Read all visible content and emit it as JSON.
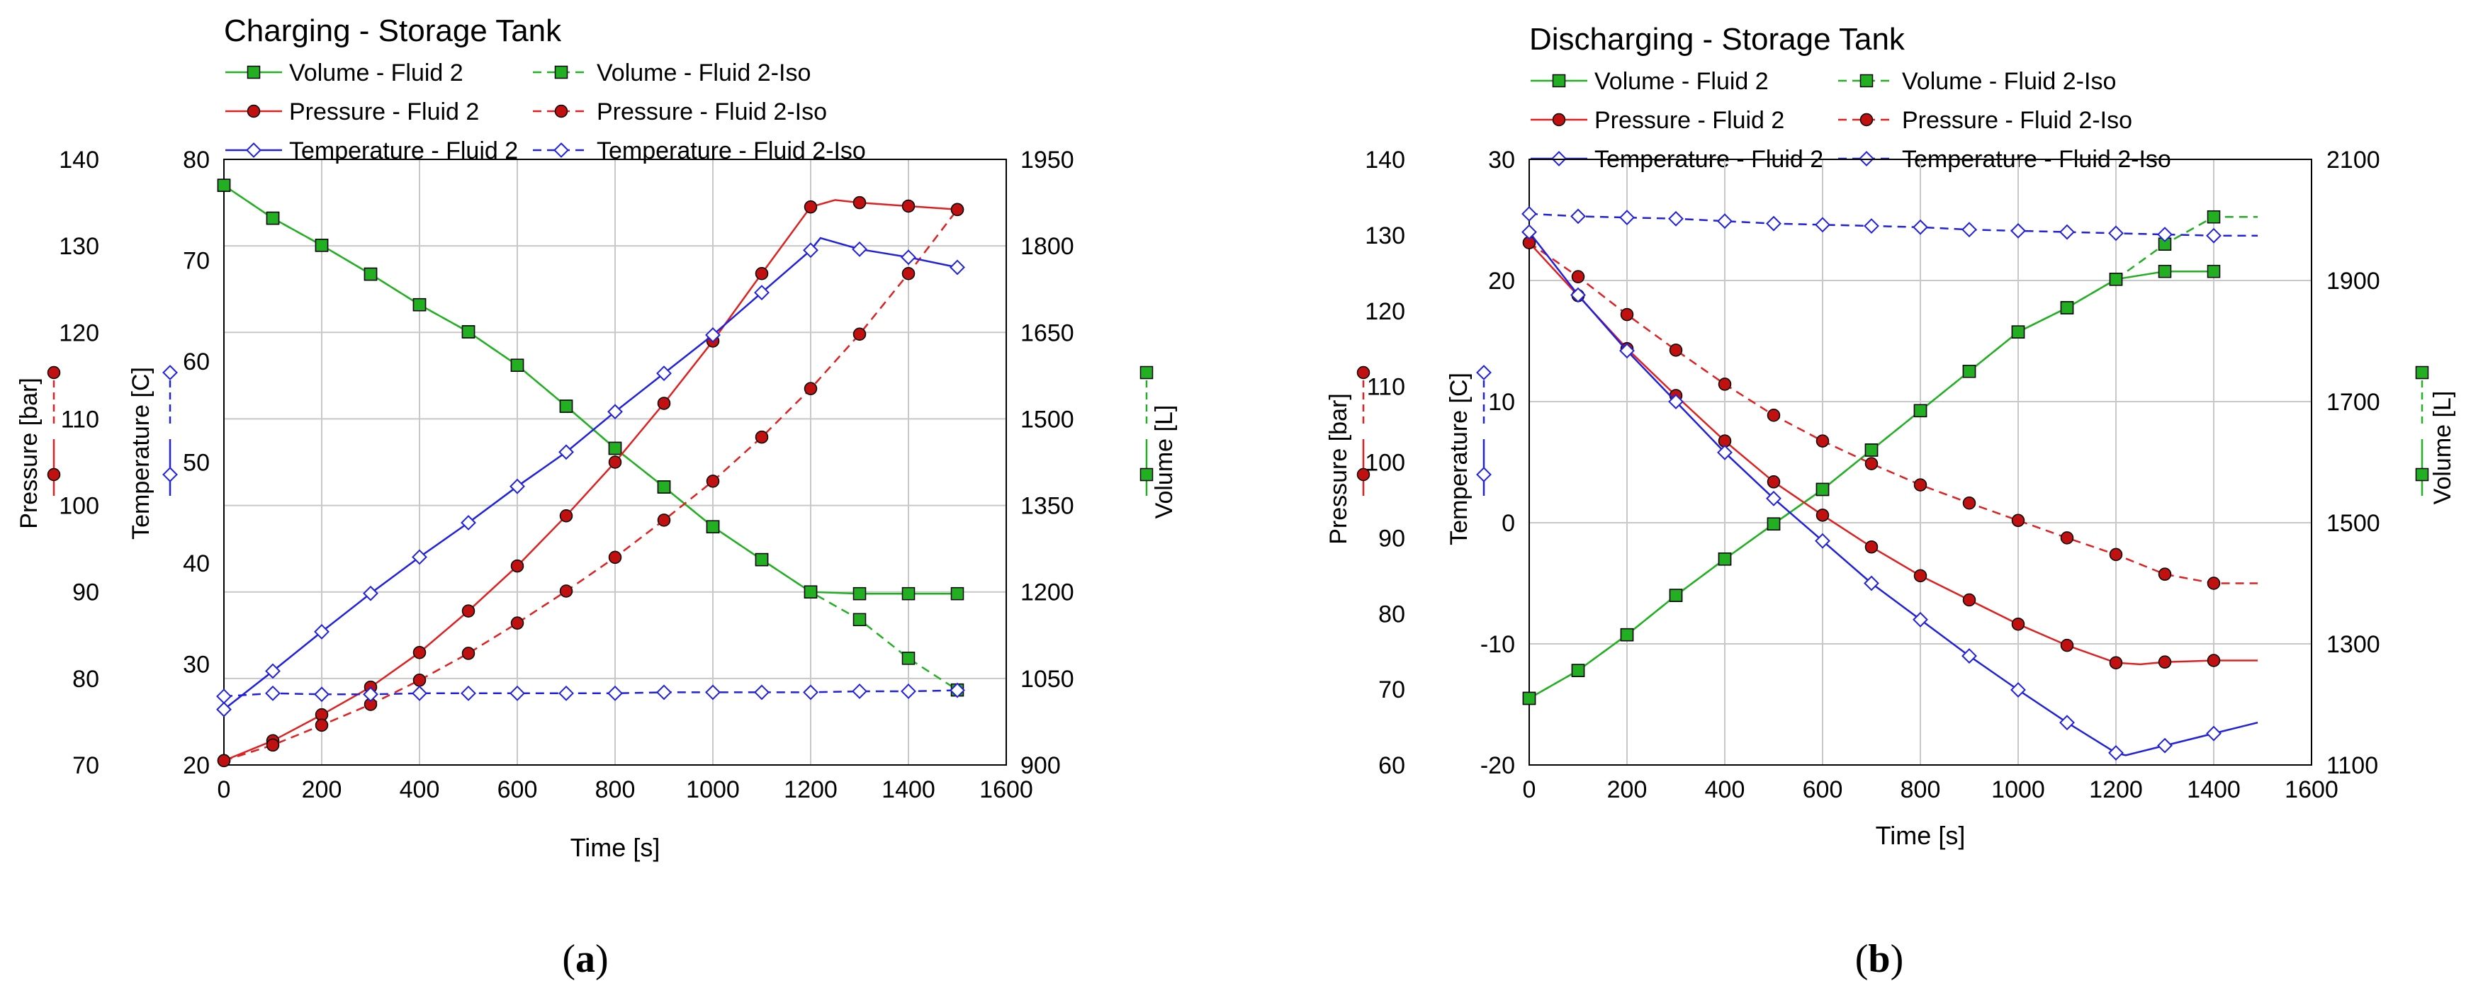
{
  "colors": {
    "green": "#22b022",
    "red": "#e02020",
    "blue": "#2020e0",
    "grid": "#c8c8c8"
  },
  "chart_data": [
    {
      "type": "line",
      "title": "Charging - Storage Tank",
      "panel_label_open": "(",
      "panel_label_letter": "a",
      "panel_label_close": ")",
      "xlabel": "Time [s]",
      "xlim": [
        0,
        1600
      ],
      "xticks": [
        0,
        200,
        400,
        600,
        800,
        1000,
        1200,
        1400,
        1600
      ],
      "grid": true,
      "axes": {
        "pressure": {
          "label": "Pressure [bar]",
          "lim": [
            70,
            140
          ],
          "ticks": [
            70,
            80,
            90,
            100,
            110,
            120,
            130,
            140
          ]
        },
        "temperature": {
          "label": "Temperature [C]",
          "lim": [
            20,
            80
          ],
          "ticks": [
            20,
            30,
            40,
            50,
            60,
            70,
            80
          ]
        },
        "volume": {
          "label": "Volume [L]",
          "lim": [
            900,
            1950
          ],
          "ticks": [
            900,
            1050,
            1200,
            1350,
            1500,
            1650,
            1800,
            1950
          ]
        }
      },
      "legend": [
        [
          "Volume - Fluid 2",
          "Volume - Fluid 2-Iso"
        ],
        [
          "Pressure - Fluid 2",
          "Pressure - Fluid 2-Iso"
        ],
        [
          "Temperature - Fluid 2",
          "Temperature - Fluid 2-Iso"
        ]
      ],
      "series": [
        {
          "name": "Volume - Fluid 2",
          "axis": "volume",
          "color": "green",
          "dash": false,
          "marker": "square",
          "x": [
            0,
            100,
            200,
            300,
            400,
            500,
            600,
            700,
            800,
            900,
            1000,
            1100,
            1200,
            1300,
            1400,
            1500
          ],
          "y": [
            1905,
            1848,
            1801,
            1751,
            1698,
            1651,
            1593,
            1522,
            1449,
            1382,
            1313,
            1256,
            1200,
            1197,
            1197,
            1197
          ]
        },
        {
          "name": "Volume - Fluid 2-Iso",
          "axis": "volume",
          "color": "green",
          "dash": true,
          "marker": "square",
          "x": [
            0,
            100,
            200,
            300,
            400,
            500,
            600,
            700,
            800,
            900,
            1000,
            1100,
            1200,
            1300,
            1400,
            1500
          ],
          "y": [
            1905,
            1848,
            1801,
            1751,
            1698,
            1651,
            1593,
            1522,
            1449,
            1382,
            1313,
            1256,
            1200,
            1152,
            1085,
            1030
          ]
        },
        {
          "name": "Pressure - Fluid 2",
          "axis": "pressure",
          "color": "red",
          "dash": false,
          "marker": "circle",
          "x": [
            0,
            100,
            200,
            300,
            400,
            500,
            600,
            700,
            800,
            900,
            1000,
            1100,
            1200,
            1250,
            1300,
            1400,
            1500
          ],
          "y": [
            70.5,
            72.8,
            75.8,
            79.0,
            83.0,
            87.8,
            93.0,
            98.8,
            105.0,
            111.8,
            119.0,
            126.8,
            134.5,
            135.3,
            135.0,
            134.6,
            134.2
          ]
        },
        {
          "name": "Pressure - Fluid 2-Iso",
          "axis": "pressure",
          "color": "red",
          "dash": true,
          "marker": "circle",
          "x": [
            0,
            100,
            200,
            300,
            400,
            500,
            600,
            700,
            800,
            900,
            1000,
            1100,
            1200,
            1300,
            1400,
            1500
          ],
          "y": [
            70.5,
            72.3,
            74.6,
            77.0,
            79.8,
            82.9,
            86.4,
            90.1,
            94.0,
            98.3,
            102.8,
            107.9,
            113.5,
            119.8,
            126.8,
            134.2
          ]
        },
        {
          "name": "Temperature - Fluid 2",
          "axis": "temperature",
          "color": "blue",
          "dash": false,
          "marker": "diamond",
          "x": [
            0,
            100,
            200,
            300,
            400,
            500,
            600,
            700,
            800,
            900,
            1000,
            1100,
            1200,
            1220,
            1300,
            1400,
            1500
          ],
          "y": [
            25.5,
            29.3,
            33.2,
            37.0,
            40.6,
            44.0,
            47.6,
            51.0,
            55.0,
            58.8,
            62.6,
            66.8,
            71.0,
            72.2,
            71.1,
            70.3,
            69.3
          ]
        },
        {
          "name": "Temperature - Fluid 2-Iso",
          "axis": "temperature",
          "color": "blue",
          "dash": true,
          "marker": "diamond",
          "x": [
            0,
            100,
            200,
            300,
            400,
            500,
            600,
            700,
            800,
            900,
            1000,
            1100,
            1200,
            1300,
            1400,
            1500
          ],
          "y": [
            26.8,
            27.1,
            27.0,
            27.0,
            27.1,
            27.1,
            27.1,
            27.1,
            27.1,
            27.2,
            27.2,
            27.2,
            27.2,
            27.3,
            27.3,
            27.4
          ]
        }
      ]
    },
    {
      "type": "line",
      "title": "Discharging - Storage Tank",
      "panel_label_open": "(",
      "panel_label_letter": "b",
      "panel_label_close": ")",
      "xlabel": "Time [s]",
      "xlim": [
        0,
        1600
      ],
      "xticks": [
        0,
        200,
        400,
        600,
        800,
        1000,
        1200,
        1400,
        1600
      ],
      "grid": true,
      "axes": {
        "pressure": {
          "label": "Pressure [bar]",
          "lim": [
            60,
            140
          ],
          "ticks": [
            60,
            70,
            80,
            90,
            100,
            110,
            120,
            130,
            140
          ]
        },
        "temperature": {
          "label": "Temperature [C]",
          "lim": [
            -20,
            30
          ],
          "ticks": [
            -20,
            -10,
            0,
            10,
            20,
            30
          ]
        },
        "volume": {
          "label": "Volume [L]",
          "lim": [
            1100,
            2100
          ],
          "ticks": [
            1100,
            1300,
            1500,
            1700,
            1900,
            2100
          ]
        }
      },
      "legend": [
        [
          "Volume - Fluid 2",
          "Volume - Fluid 2-Iso"
        ],
        [
          "Pressure - Fluid 2",
          "Pressure - Fluid 2-Iso"
        ],
        [
          "Temperature - Fluid 2",
          "Temperature - Fluid 2-Iso"
        ]
      ],
      "series": [
        {
          "name": "Volume - Fluid 2",
          "axis": "volume",
          "color": "green",
          "dash": false,
          "marker": "square",
          "x": [
            0,
            100,
            200,
            300,
            400,
            500,
            600,
            700,
            800,
            900,
            1000,
            1100,
            1200,
            1300,
            1400
          ],
          "y": [
            1210,
            1256,
            1315,
            1380,
            1440,
            1498,
            1555,
            1620,
            1685,
            1750,
            1815,
            1855,
            1902,
            1915,
            1915
          ]
        },
        {
          "name": "Volume - Fluid 2-Iso",
          "axis": "volume",
          "color": "green",
          "dash": true,
          "marker": "square",
          "x": [
            0,
            100,
            200,
            300,
            400,
            500,
            600,
            700,
            800,
            900,
            1000,
            1100,
            1200,
            1300,
            1400,
            1450,
            1490
          ],
          "y": [
            1210,
            1256,
            1315,
            1380,
            1440,
            1498,
            1555,
            1620,
            1685,
            1750,
            1815,
            1855,
            1902,
            1960,
            2005,
            2005,
            2005
          ]
        },
        {
          "name": "Pressure - Fluid 2",
          "axis": "pressure",
          "color": "red",
          "dash": false,
          "marker": "circle",
          "x": [
            0,
            100,
            200,
            300,
            400,
            500,
            600,
            700,
            800,
            900,
            1000,
            1100,
            1200,
            1250,
            1300,
            1400,
            1490
          ],
          "y": [
            129.0,
            122.0,
            115.0,
            108.8,
            102.8,
            97.4,
            93.0,
            88.8,
            85.0,
            81.8,
            78.6,
            75.8,
            73.5,
            73.3,
            73.6,
            73.8,
            73.8
          ]
        },
        {
          "name": "Pressure - Fluid 2-Iso",
          "axis": "pressure",
          "color": "red",
          "dash": true,
          "marker": "circle",
          "x": [
            0,
            100,
            200,
            300,
            400,
            500,
            600,
            700,
            800,
            900,
            1000,
            1100,
            1200,
            1300,
            1400,
            1450,
            1490
          ],
          "y": [
            129.0,
            124.5,
            119.5,
            114.8,
            110.3,
            106.2,
            102.8,
            99.8,
            97.0,
            94.6,
            92.3,
            90.0,
            87.8,
            85.2,
            84.0,
            84.0,
            84.0
          ]
        },
        {
          "name": "Temperature - Fluid 2",
          "axis": "temperature",
          "color": "blue",
          "dash": false,
          "marker": "diamond",
          "x": [
            0,
            100,
            200,
            300,
            400,
            500,
            600,
            700,
            800,
            900,
            1000,
            1100,
            1200,
            1220,
            1300,
            1400,
            1490
          ],
          "y": [
            24.0,
            18.8,
            14.2,
            10.0,
            5.8,
            2.0,
            -1.5,
            -5.0,
            -8.0,
            -11.0,
            -13.8,
            -16.5,
            -19.0,
            -19.2,
            -18.4,
            -17.4,
            -16.5
          ]
        },
        {
          "name": "Temperature - Fluid 2-Iso",
          "axis": "temperature",
          "color": "blue",
          "dash": true,
          "marker": "diamond",
          "x": [
            0,
            100,
            200,
            300,
            400,
            500,
            600,
            700,
            800,
            900,
            1000,
            1100,
            1200,
            1300,
            1400,
            1450,
            1490
          ],
          "y": [
            25.5,
            25.3,
            25.2,
            25.1,
            24.9,
            24.7,
            24.6,
            24.5,
            24.4,
            24.2,
            24.1,
            24.0,
            23.9,
            23.8,
            23.7,
            23.7,
            23.7
          ]
        }
      ]
    }
  ]
}
